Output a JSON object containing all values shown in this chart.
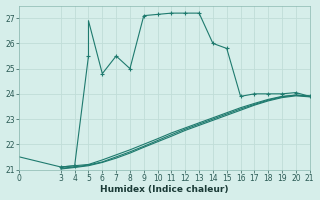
{
  "xlabel": "Humidex (Indice chaleur)",
  "bg_color": "#d6eeea",
  "line_color": "#1e7a6e",
  "grid_color": "#c0ddd8",
  "xlim": [
    0,
    21
  ],
  "ylim": [
    21,
    27.5
  ],
  "xticks": [
    0,
    3,
    4,
    5,
    6,
    7,
    8,
    9,
    10,
    11,
    12,
    13,
    14,
    15,
    16,
    17,
    18,
    19,
    20,
    21
  ],
  "yticks": [
    21,
    22,
    23,
    24,
    25,
    26,
    27
  ],
  "main_x": [
    3,
    4,
    5,
    5,
    6,
    7,
    8,
    9,
    10,
    11,
    12,
    13,
    14,
    15,
    15,
    16,
    16,
    17,
    18,
    19,
    20,
    21
  ],
  "main_y": [
    21.1,
    21.15,
    25.5,
    26.9,
    24.8,
    25.5,
    25.0,
    27.1,
    27.15,
    27.2,
    27.2,
    27.2,
    26.0,
    25.8,
    25.8,
    23.9,
    23.9,
    24.0,
    24.0,
    24.0,
    24.05,
    23.9
  ],
  "marker_x": [
    3,
    4,
    5,
    6,
    7,
    8,
    9,
    10,
    11,
    12,
    13,
    14,
    15,
    16,
    17,
    18,
    19,
    20,
    21
  ],
  "marker_y": [
    21.1,
    21.15,
    25.5,
    24.8,
    25.5,
    25.0,
    27.1,
    27.15,
    27.2,
    27.2,
    27.2,
    26.0,
    25.8,
    23.9,
    24.0,
    24.0,
    24.0,
    24.05,
    23.9
  ],
  "diag1_x": [
    0,
    3,
    4,
    5,
    6,
    7,
    8,
    9,
    10,
    11,
    12,
    13,
    14,
    15,
    16,
    17,
    18,
    19,
    20,
    21
  ],
  "diag1_y": [
    21.5,
    21.1,
    21.15,
    21.2,
    21.38,
    21.58,
    21.78,
    22.0,
    22.22,
    22.45,
    22.65,
    22.85,
    23.05,
    23.25,
    23.45,
    23.62,
    23.78,
    23.9,
    23.95,
    23.9
  ],
  "diag2_x": [
    3,
    4,
    5,
    6,
    7,
    8,
    9,
    10,
    11,
    12,
    13,
    14,
    15,
    16,
    17,
    18,
    19,
    20,
    21
  ],
  "diag2_y": [
    21.05,
    21.1,
    21.18,
    21.3,
    21.5,
    21.7,
    21.92,
    22.15,
    22.38,
    22.6,
    22.8,
    23.0,
    23.2,
    23.4,
    23.58,
    23.75,
    23.88,
    23.95,
    23.92
  ],
  "diag3_x": [
    3,
    4,
    5,
    6,
    7,
    8,
    9,
    10,
    11,
    12,
    13,
    14,
    15,
    16,
    17,
    18,
    19,
    20,
    21
  ],
  "diag3_y": [
    21.02,
    21.08,
    21.15,
    21.28,
    21.45,
    21.65,
    21.88,
    22.1,
    22.32,
    22.55,
    22.75,
    22.95,
    23.15,
    23.35,
    23.55,
    23.72,
    23.85,
    23.92,
    23.88
  ]
}
